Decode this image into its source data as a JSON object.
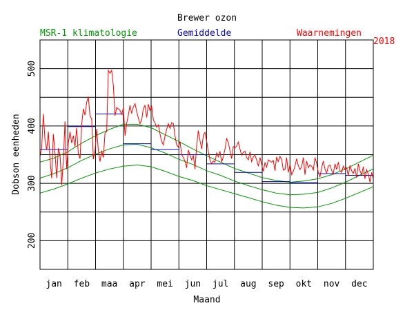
{
  "chart_data": {
    "type": "line",
    "title": "Brewer ozon",
    "xlabel": "Maand",
    "ylabel": "Dobson eenheden",
    "year": "2018",
    "ylim": [
      150,
      550
    ],
    "xlim": [
      0,
      12
    ],
    "y_ticks": [
      200,
      300,
      400,
      500
    ],
    "months": [
      "jan",
      "feb",
      "maa",
      "apr",
      "mei",
      "jun",
      "jul",
      "aug",
      "sep",
      "okt",
      "nov",
      "dec"
    ],
    "legend": {
      "climatology": "MSR-1 klimatologie",
      "mean": "Gemiddelde",
      "observations": "Waarnemingen"
    },
    "colors": {
      "climatology": "#009900",
      "mean": "#0000cc",
      "observations": "#ff0000",
      "grid": "#000000"
    },
    "climatology": {
      "mean": [
        [
          0.0,
          309
        ],
        [
          0.5,
          317
        ],
        [
          1.0,
          327
        ],
        [
          1.5,
          340
        ],
        [
          2.0,
          351
        ],
        [
          2.5,
          360
        ],
        [
          3.0,
          367
        ],
        [
          3.5,
          368
        ],
        [
          4.0,
          362
        ],
        [
          4.5,
          353
        ],
        [
          5.0,
          342
        ],
        [
          5.5,
          333
        ],
        [
          6.0,
          322
        ],
        [
          6.5,
          314
        ],
        [
          7.0,
          304
        ],
        [
          7.5,
          296
        ],
        [
          8.0,
          289
        ],
        [
          8.5,
          283
        ],
        [
          9.0,
          280
        ],
        [
          9.5,
          281
        ],
        [
          10.0,
          284
        ],
        [
          10.5,
          292
        ],
        [
          11.0,
          302
        ],
        [
          11.5,
          314
        ],
        [
          12.0,
          325
        ]
      ],
      "upper": [
        [
          0.0,
          337
        ],
        [
          0.5,
          344
        ],
        [
          1.0,
          355
        ],
        [
          1.5,
          370
        ],
        [
          2.0,
          383
        ],
        [
          2.5,
          394
        ],
        [
          3.0,
          403
        ],
        [
          3.5,
          403
        ],
        [
          4.0,
          397
        ],
        [
          4.5,
          385
        ],
        [
          5.0,
          373
        ],
        [
          5.5,
          360
        ],
        [
          6.0,
          348
        ],
        [
          6.5,
          337
        ],
        [
          7.0,
          326
        ],
        [
          7.5,
          318
        ],
        [
          8.0,
          310
        ],
        [
          8.5,
          305
        ],
        [
          9.0,
          302
        ],
        [
          9.5,
          304
        ],
        [
          10.0,
          308
        ],
        [
          10.5,
          315
        ],
        [
          11.0,
          325
        ],
        [
          11.5,
          337
        ],
        [
          12.0,
          349
        ]
      ],
      "lower": [
        [
          0.0,
          283
        ],
        [
          0.5,
          290
        ],
        [
          1.0,
          299
        ],
        [
          1.5,
          309
        ],
        [
          2.0,
          318
        ],
        [
          2.5,
          325
        ],
        [
          3.0,
          330
        ],
        [
          3.5,
          332
        ],
        [
          4.0,
          329
        ],
        [
          4.5,
          321
        ],
        [
          5.0,
          312
        ],
        [
          5.5,
          305
        ],
        [
          6.0,
          296
        ],
        [
          6.5,
          289
        ],
        [
          7.0,
          282
        ],
        [
          7.5,
          275
        ],
        [
          8.0,
          268
        ],
        [
          8.5,
          262
        ],
        [
          9.0,
          258
        ],
        [
          9.5,
          257
        ],
        [
          10.0,
          259
        ],
        [
          10.5,
          265
        ],
        [
          11.0,
          274
        ],
        [
          11.5,
          284
        ],
        [
          12.0,
          294
        ]
      ]
    },
    "monthly_means": [
      {
        "month": "jan",
        "value": 359
      },
      {
        "month": "feb",
        "value": 399
      },
      {
        "month": "maa",
        "value": 421
      },
      {
        "month": "apr",
        "value": 369
      },
      {
        "month": "mei",
        "value": 359
      },
      {
        "month": "jun",
        "value": 350
      },
      {
        "month": "jul",
        "value": 334
      },
      {
        "month": "aug",
        "value": 319
      },
      {
        "month": "sep",
        "value": 303
      },
      {
        "month": "okt",
        "value": 301
      },
      {
        "month": "nov",
        "value": 317
      },
      {
        "month": "dec",
        "value": 314
      }
    ],
    "observations": [
      [
        0.0,
        347
      ],
      [
        0.06,
        362
      ],
      [
        0.12,
        421
      ],
      [
        0.18,
        376
      ],
      [
        0.24,
        358
      ],
      [
        0.3,
        390
      ],
      [
        0.36,
        341
      ],
      [
        0.42,
        309
      ],
      [
        0.48,
        386
      ],
      [
        0.54,
        353
      ],
      [
        0.6,
        309
      ],
      [
        0.66,
        361
      ],
      [
        0.72,
        350
      ],
      [
        0.78,
        297
      ],
      [
        0.84,
        340
      ],
      [
        0.9,
        408
      ],
      [
        0.96,
        325
      ],
      [
        1.02,
        371
      ],
      [
        1.08,
        390
      ],
      [
        1.14,
        370
      ],
      [
        1.2,
        383
      ],
      [
        1.26,
        364
      ],
      [
        1.32,
        397
      ],
      [
        1.38,
        352
      ],
      [
        1.44,
        343
      ],
      [
        1.5,
        403
      ],
      [
        1.56,
        430
      ],
      [
        1.62,
        419
      ],
      [
        1.68,
        441
      ],
      [
        1.74,
        451
      ],
      [
        1.8,
        418
      ],
      [
        1.86,
        412
      ],
      [
        1.92,
        342
      ],
      [
        1.98,
        356
      ],
      [
        2.04,
        395
      ],
      [
        2.1,
        358
      ],
      [
        2.16,
        338
      ],
      [
        2.22,
        357
      ],
      [
        2.28,
        345
      ],
      [
        2.34,
        388
      ],
      [
        2.4,
        390
      ],
      [
        2.46,
        497
      ],
      [
        2.52,
        492
      ],
      [
        2.58,
        497
      ],
      [
        2.64,
        470
      ],
      [
        2.7,
        418
      ],
      [
        2.76,
        432
      ],
      [
        2.82,
        430
      ],
      [
        2.88,
        427
      ],
      [
        2.94,
        420
      ],
      [
        3.0,
        432
      ],
      [
        3.06,
        383
      ],
      [
        3.12,
        405
      ],
      [
        3.18,
        419
      ],
      [
        3.24,
        436
      ],
      [
        3.3,
        422
      ],
      [
        3.36,
        433
      ],
      [
        3.42,
        439
      ],
      [
        3.48,
        425
      ],
      [
        3.54,
        414
      ],
      [
        3.6,
        404
      ],
      [
        3.66,
        410
      ],
      [
        3.72,
        430
      ],
      [
        3.78,
        436
      ],
      [
        3.84,
        415
      ],
      [
        3.9,
        438
      ],
      [
        3.96,
        427
      ],
      [
        4.02,
        434
      ],
      [
        4.08,
        411
      ],
      [
        4.14,
        405
      ],
      [
        4.2,
        398
      ],
      [
        4.26,
        402
      ],
      [
        4.32,
        386
      ],
      [
        4.38,
        373
      ],
      [
        4.44,
        367
      ],
      [
        4.5,
        382
      ],
      [
        4.56,
        394
      ],
      [
        4.62,
        404
      ],
      [
        4.68,
        396
      ],
      [
        4.74,
        406
      ],
      [
        4.8,
        404
      ],
      [
        4.86,
        383
      ],
      [
        4.92,
        367
      ],
      [
        4.98,
        363
      ],
      [
        5.04,
        373
      ],
      [
        5.1,
        350
      ],
      [
        5.16,
        345
      ],
      [
        5.22,
        339
      ],
      [
        5.28,
        327
      ],
      [
        5.34,
        358
      ],
      [
        5.4,
        349
      ],
      [
        5.46,
        341
      ],
      [
        5.52,
        349
      ],
      [
        5.58,
        325
      ],
      [
        5.64,
        365
      ],
      [
        5.7,
        392
      ],
      [
        5.76,
        375
      ],
      [
        5.82,
        360
      ],
      [
        5.88,
        384
      ],
      [
        5.94,
        389
      ],
      [
        6.0,
        374
      ],
      [
        6.06,
        356
      ],
      [
        6.12,
        341
      ],
      [
        6.18,
        334
      ],
      [
        6.24,
        339
      ],
      [
        6.3,
        337
      ],
      [
        6.36,
        353
      ],
      [
        6.42,
        346
      ],
      [
        6.48,
        356
      ],
      [
        6.54,
        337
      ],
      [
        6.6,
        346
      ],
      [
        6.66,
        360
      ],
      [
        6.72,
        378
      ],
      [
        6.78,
        371
      ],
      [
        6.84,
        357
      ],
      [
        6.9,
        343
      ],
      [
        6.96,
        364
      ],
      [
        7.02,
        362
      ],
      [
        7.08,
        365
      ],
      [
        7.14,
        372
      ],
      [
        7.2,
        360
      ],
      [
        7.26,
        349
      ],
      [
        7.32,
        354
      ],
      [
        7.38,
        356
      ],
      [
        7.44,
        345
      ],
      [
        7.5,
        341
      ],
      [
        7.56,
        355
      ],
      [
        7.62,
        338
      ],
      [
        7.68,
        346
      ],
      [
        7.74,
        349
      ],
      [
        7.8,
        341
      ],
      [
        7.86,
        330
      ],
      [
        7.92,
        345
      ],
      [
        7.98,
        333
      ],
      [
        8.04,
        321
      ],
      [
        8.1,
        336
      ],
      [
        8.16,
        328
      ],
      [
        8.22,
        341
      ],
      [
        8.28,
        339
      ],
      [
        8.34,
        337
      ],
      [
        8.4,
        340
      ],
      [
        8.46,
        322
      ],
      [
        8.52,
        346
      ],
      [
        8.58,
        338
      ],
      [
        8.64,
        347
      ],
      [
        8.7,
        342
      ],
      [
        8.76,
        323
      ],
      [
        8.82,
        324
      ],
      [
        8.88,
        345
      ],
      [
        8.94,
        319
      ],
      [
        9.0,
        333
      ],
      [
        9.06,
        315
      ],
      [
        9.12,
        321
      ],
      [
        9.18,
        330
      ],
      [
        9.24,
        343
      ],
      [
        9.3,
        331
      ],
      [
        9.36,
        324
      ],
      [
        9.42,
        329
      ],
      [
        9.48,
        345
      ],
      [
        9.54,
        315
      ],
      [
        9.6,
        339
      ],
      [
        9.66,
        327
      ],
      [
        9.72,
        332
      ],
      [
        9.78,
        330
      ],
      [
        9.84,
        323
      ],
      [
        9.9,
        345
      ],
      [
        9.96,
        335
      ],
      [
        10.02,
        320
      ],
      [
        10.08,
        311
      ],
      [
        10.14,
        327
      ],
      [
        10.2,
        339
      ],
      [
        10.26,
        325
      ],
      [
        10.32,
        318
      ],
      [
        10.38,
        330
      ],
      [
        10.44,
        332
      ],
      [
        10.5,
        323
      ],
      [
        10.56,
        316
      ],
      [
        10.62,
        334
      ],
      [
        10.68,
        324
      ],
      [
        10.74,
        337
      ],
      [
        10.8,
        322
      ],
      [
        10.86,
        319
      ],
      [
        10.92,
        330
      ],
      [
        10.98,
        324
      ],
      [
        11.04,
        327
      ],
      [
        11.1,
        313
      ],
      [
        11.16,
        331
      ],
      [
        11.22,
        322
      ],
      [
        11.28,
        317
      ],
      [
        11.34,
        326
      ],
      [
        11.4,
        310
      ],
      [
        11.46,
        334
      ],
      [
        11.52,
        322
      ],
      [
        11.58,
        315
      ],
      [
        11.64,
        329
      ],
      [
        11.7,
        308
      ],
      [
        11.76,
        324
      ],
      [
        11.82,
        316
      ],
      [
        11.88,
        302
      ],
      [
        11.94,
        319
      ],
      [
        12.0,
        308
      ]
    ]
  }
}
